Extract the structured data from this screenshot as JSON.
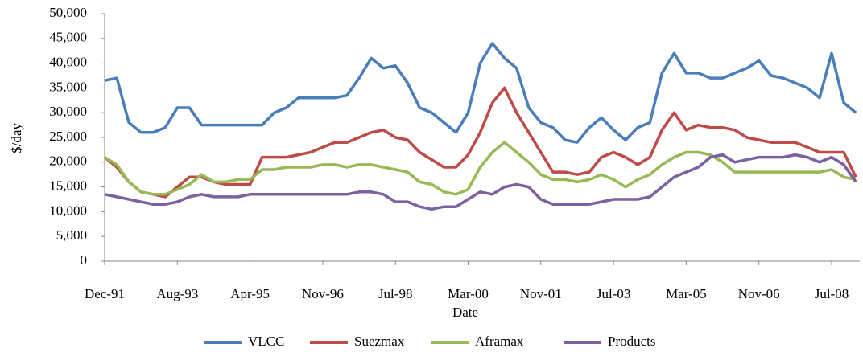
{
  "chart_data": {
    "type": "line",
    "x_label": "Date",
    "y_label": "$/day",
    "categories": [
      "Dec-91",
      null,
      null,
      null,
      null,
      null,
      "Aug-93",
      null,
      null,
      null,
      null,
      null,
      "Apr-95",
      null,
      null,
      null,
      null,
      null,
      "Nov-96",
      null,
      null,
      null,
      null,
      null,
      "Jul-98",
      null,
      null,
      null,
      null,
      null,
      "Mar-00",
      null,
      null,
      null,
      null,
      null,
      "Nov-01",
      null,
      null,
      null,
      null,
      null,
      "Jul-03",
      null,
      null,
      null,
      null,
      null,
      "Mar-05",
      null,
      null,
      null,
      null,
      null,
      "Nov-06",
      null,
      null,
      null,
      null,
      null,
      "Jul-08",
      null,
      null
    ],
    "series": [
      {
        "name": "VLCC",
        "color": "#4a7ebb",
        "values": [
          36500,
          37000,
          28000,
          26000,
          26000,
          27000,
          31000,
          31000,
          27500,
          27500,
          27500,
          27500,
          27500,
          27500,
          30000,
          31000,
          33000,
          33000,
          33000,
          33000,
          33500,
          37000,
          41000,
          39000,
          39500,
          36000,
          31000,
          30000,
          28000,
          26000,
          30000,
          40000,
          44000,
          41000,
          39000,
          31000,
          28000,
          27000,
          24500,
          24000,
          27000,
          29000,
          26500,
          24500,
          27000,
          28000,
          38000,
          42000,
          38000,
          38000,
          37000,
          37000,
          38000,
          39000,
          40500,
          37500,
          37000,
          36000,
          35000,
          33000,
          42000,
          32000,
          30000
        ]
      },
      {
        "name": "Suezmax",
        "color": "#be4b48",
        "values": [
          21000,
          19000,
          16000,
          14000,
          13500,
          13000,
          15000,
          17000,
          17000,
          16000,
          15500,
          15500,
          15500,
          21000,
          21000,
          21000,
          21500,
          22000,
          23000,
          24000,
          24000,
          25000,
          26000,
          26500,
          25000,
          24500,
          22000,
          20500,
          19000,
          19000,
          21500,
          26000,
          32000,
          35000,
          30000,
          26000,
          22000,
          18000,
          18000,
          17500,
          18000,
          21000,
          22000,
          21000,
          19500,
          21000,
          26500,
          30000,
          26500,
          27500,
          27000,
          27000,
          26500,
          25000,
          24500,
          24000,
          24000,
          24000,
          23000,
          22000,
          22000,
          22000,
          17000
        ]
      },
      {
        "name": "Aframax",
        "color": "#98b954",
        "values": [
          21000,
          19500,
          16000,
          14000,
          13500,
          13500,
          14500,
          15500,
          17500,
          16000,
          16000,
          16500,
          16500,
          18500,
          18500,
          19000,
          19000,
          19000,
          19500,
          19500,
          19000,
          19500,
          19500,
          19000,
          18500,
          18000,
          16000,
          15500,
          14000,
          13500,
          14500,
          19000,
          22000,
          24000,
          22000,
          20000,
          17500,
          16500,
          16500,
          16000,
          16500,
          17500,
          16500,
          15000,
          16500,
          17500,
          19500,
          21000,
          22000,
          22000,
          21500,
          20000,
          18000,
          18000,
          18000,
          18000,
          18000,
          18000,
          18000,
          18000,
          18500,
          17000,
          16500
        ]
      },
      {
        "name": "Products",
        "color": "#7d60a0",
        "values": [
          13500,
          13000,
          12500,
          12000,
          11500,
          11500,
          12000,
          13000,
          13500,
          13000,
          13000,
          13000,
          13500,
          13500,
          13500,
          13500,
          13500,
          13500,
          13500,
          13500,
          13500,
          14000,
          14000,
          13500,
          12000,
          12000,
          11000,
          10500,
          11000,
          11000,
          12500,
          14000,
          13500,
          15000,
          15500,
          15000,
          12500,
          11500,
          11500,
          11500,
          11500,
          12000,
          12500,
          12500,
          12500,
          13000,
          15000,
          17000,
          18000,
          19000,
          21000,
          21500,
          20000,
          20500,
          21000,
          21000,
          21000,
          21500,
          21000,
          20000,
          21000,
          19500,
          16000
        ]
      }
    ],
    "ylim": [
      0,
      50000
    ],
    "yticks": [
      0,
      {
        "value": 5000,
        "label": "5,000"
      },
      {
        "value": 10000,
        "label": "10,000"
      },
      {
        "value": 15000,
        "label": "15,000"
      },
      {
        "value": 20000,
        "label": "20,000"
      },
      {
        "value": 25000,
        "label": "25,000"
      },
      {
        "value": 30000,
        "label": "30,000"
      },
      {
        "value": 35000,
        "label": "35,000"
      },
      {
        "value": 40000,
        "label": "40,000"
      },
      {
        "value": 45000,
        "label": "45,000"
      },
      {
        "value": 50000,
        "label": "50,000"
      }
    ],
    "grid": false,
    "legend": "bottom"
  }
}
